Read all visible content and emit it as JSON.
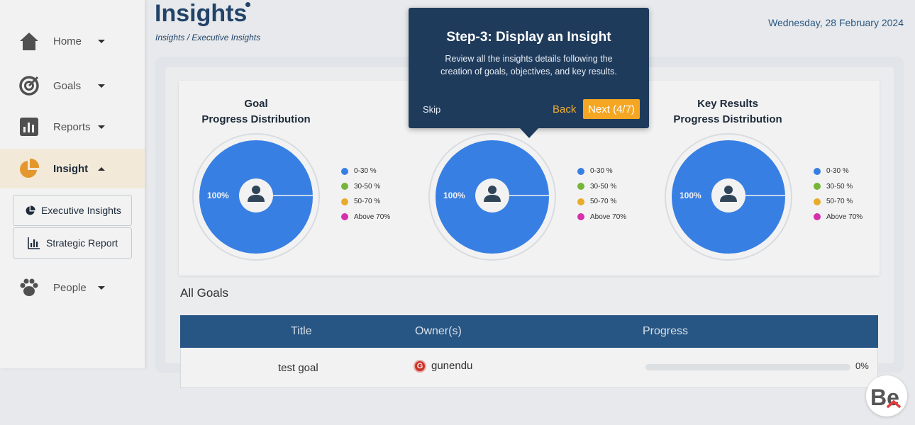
{
  "header": {
    "title": "Insights",
    "breadcrumb": "Insights / Executive Insights",
    "date": "Wednesday, 28 February 2024"
  },
  "sidebar": {
    "items": [
      {
        "label": "Home",
        "icon": "home-icon"
      },
      {
        "label": "Goals",
        "icon": "target-icon"
      },
      {
        "label": "Reports",
        "icon": "bar-chart-icon"
      },
      {
        "label": "Insight",
        "icon": "pie-chart-icon",
        "active": true
      },
      {
        "label": "People",
        "icon": "paw-icon"
      }
    ],
    "sub_items": [
      {
        "label": "Executive Insights",
        "icon": "pie-chart-icon"
      },
      {
        "label": "Strategic Report",
        "icon": "bar-chart-icon"
      }
    ]
  },
  "colors": {
    "accent": "#f5a623",
    "pie_blue": "#3b86f0",
    "navy": "#24476e",
    "table_header": "#2b5b8c",
    "legend": [
      "#3b86f0",
      "#7cbf3c",
      "#f5b52e",
      "#e232b8"
    ]
  },
  "charts": [
    {
      "title_line1": "Goal",
      "title_line2": "Progress Distribution",
      "center_label": "100%"
    },
    {
      "title_line1": "",
      "title_line2": "",
      "center_label": "100%"
    },
    {
      "title_line1": "Key Results",
      "title_line2": "Progress Distribution",
      "center_label": "100%"
    }
  ],
  "legend": [
    "0-30 %",
    "30-50 %",
    "50-70 %",
    "Above 70%"
  ],
  "goals": {
    "section_title": "All Goals",
    "columns": [
      "Title",
      "Owner(s)",
      "Progress"
    ],
    "rows": [
      {
        "title": "test goal",
        "owner": "gunendu",
        "owner_initial": "G",
        "progress": "0%"
      }
    ]
  },
  "tour": {
    "title": "Step-3: Display an Insight",
    "body": "Review all the insights details following the creation of goals, objectives, and key results.",
    "skip": "Skip",
    "back": "Back",
    "next": "Next (4/7)"
  },
  "logo": {
    "text": "Be"
  }
}
